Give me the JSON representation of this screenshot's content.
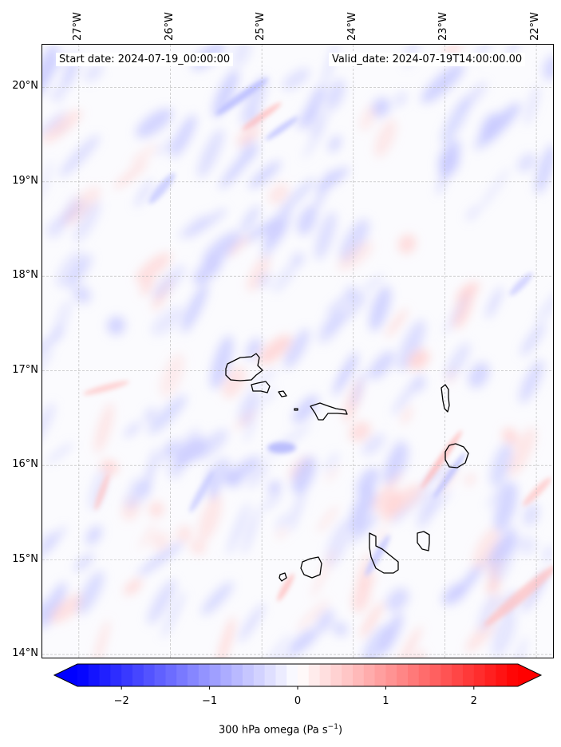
{
  "map": {
    "variable": "300 hPa omega",
    "unit_label": "(Pa s",
    "unit_exp": "−1",
    "unit_close": ")",
    "start_text": "Start date: 2024-07-19_00:00:00",
    "valid_text": "Valid_date: 2024-07-19T14:00:00.00",
    "lon_labels": [
      "27°W",
      "26°W",
      "25°W",
      "24°W",
      "23°W",
      "22°W"
    ],
    "lat_labels": [
      "20°N",
      "19°N",
      "18°N",
      "17°N",
      "16°N",
      "15°N",
      "14°N"
    ],
    "extent": {
      "lon_min": -27.4,
      "lon_max": -21.8,
      "lat_min": 13.95,
      "lat_max": 20.45
    },
    "islands": [
      "Santo Antão",
      "São Vicente",
      "Santa Luzia",
      "Branco",
      "São Nicolau",
      "Sal",
      "Boa Vista",
      "Santiago",
      "Maio",
      "Fogo",
      "Brava"
    ]
  },
  "colorbar": {
    "ticks": [
      "−2",
      "−1",
      "0",
      "1",
      "2"
    ],
    "tick_values": [
      -2,
      -1,
      0,
      1,
      2
    ],
    "range": [
      -2.5,
      2.5
    ],
    "colors": {
      "low": "#0000ff",
      "mid": "#ffffff",
      "high": "#ff0000"
    },
    "extend": "both"
  }
}
